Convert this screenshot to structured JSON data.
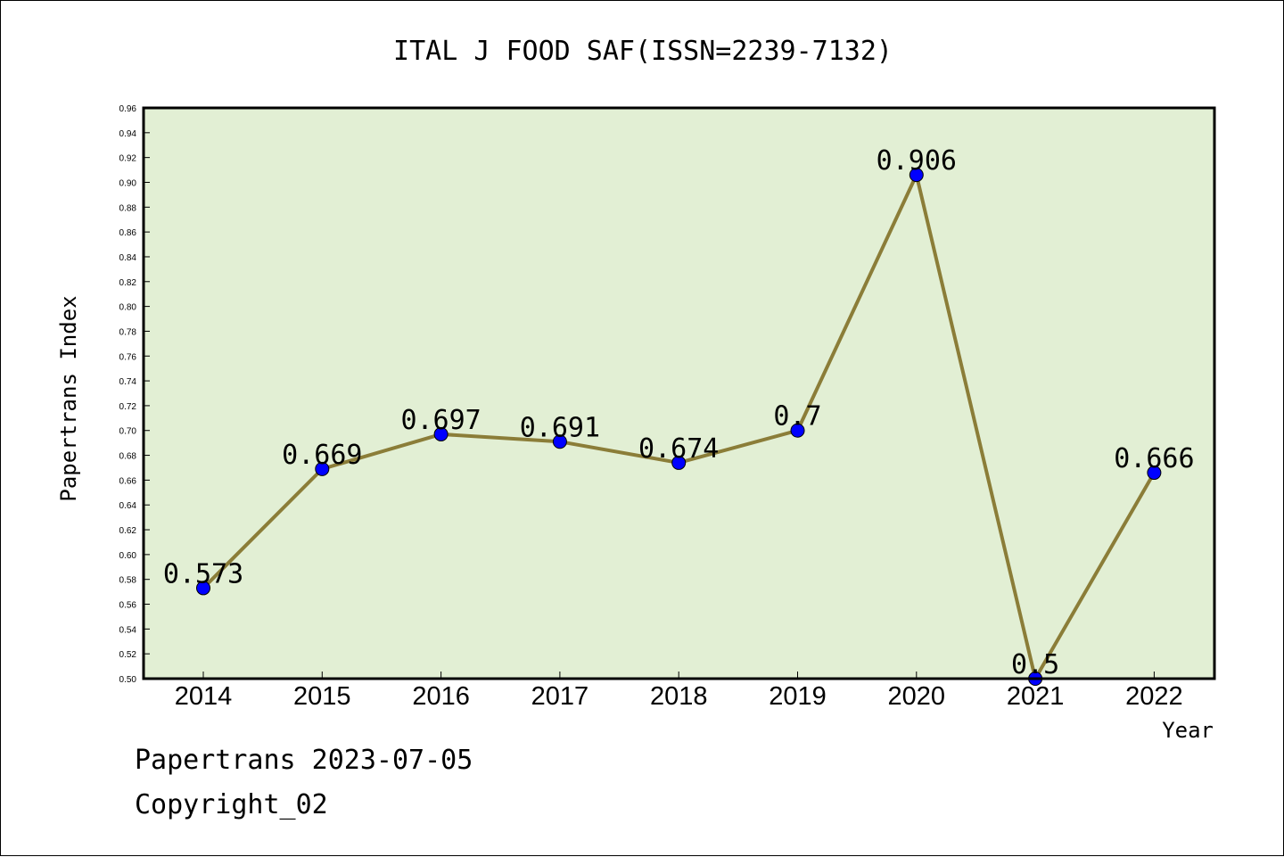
{
  "chart_data": {
    "type": "line",
    "title": "ITAL J FOOD SAF(ISSN=2239-7132)",
    "xlabel": "Year",
    "ylabel": "Papertrans Index",
    "categories": [
      "2014",
      "2015",
      "2016",
      "2017",
      "2018",
      "2019",
      "2020",
      "2021",
      "2022"
    ],
    "series": [
      {
        "values": [
          0.573,
          0.669,
          0.697,
          0.691,
          0.674,
          0.7,
          0.906,
          0.5,
          0.666
        ],
        "labels": [
          "0.573",
          "0.669",
          "0.697",
          "0.691",
          "0.674",
          "0.7",
          "0.906",
          "0.5",
          "0.666"
        ]
      }
    ],
    "ylim": [
      0.5,
      0.96
    ],
    "ytick_step": 0.02,
    "grid": false,
    "colors": {
      "plot_background": "#e2efd4",
      "line": "#8b7d38",
      "marker": "#0000ff"
    }
  },
  "footer": {
    "line1": "Papertrans 2023-07-05",
    "line2": "Copyright_02"
  }
}
